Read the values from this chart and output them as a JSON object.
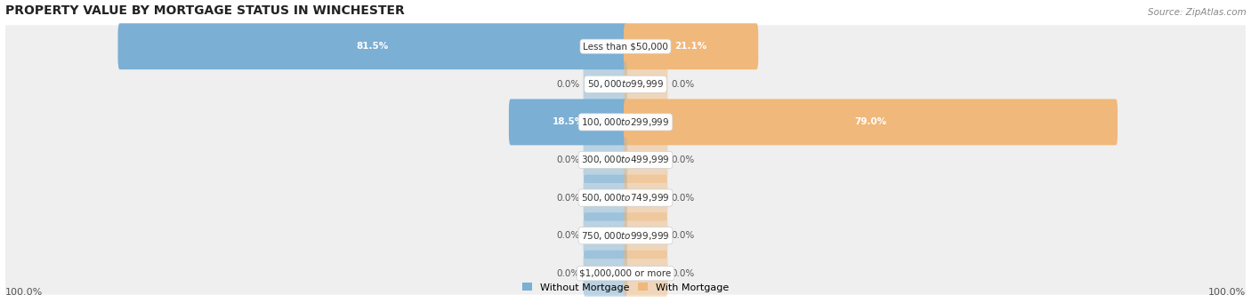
{
  "title": "PROPERTY VALUE BY MORTGAGE STATUS IN WINCHESTER",
  "source": "Source: ZipAtlas.com",
  "categories": [
    "Less than $50,000",
    "$50,000 to $99,999",
    "$100,000 to $299,999",
    "$300,000 to $499,999",
    "$500,000 to $749,999",
    "$750,000 to $999,999",
    "$1,000,000 or more"
  ],
  "without_mortgage": [
    81.5,
    0.0,
    18.5,
    0.0,
    0.0,
    0.0,
    0.0
  ],
  "with_mortgage": [
    21.1,
    0.0,
    79.0,
    0.0,
    0.0,
    0.0,
    0.0
  ],
  "color_without": "#7bafd4",
  "color_with": "#f0b87a",
  "row_bg_color": "#efefef",
  "title_fontsize": 10,
  "label_fontsize": 7.5,
  "tick_fontsize": 8,
  "legend_fontsize": 8
}
